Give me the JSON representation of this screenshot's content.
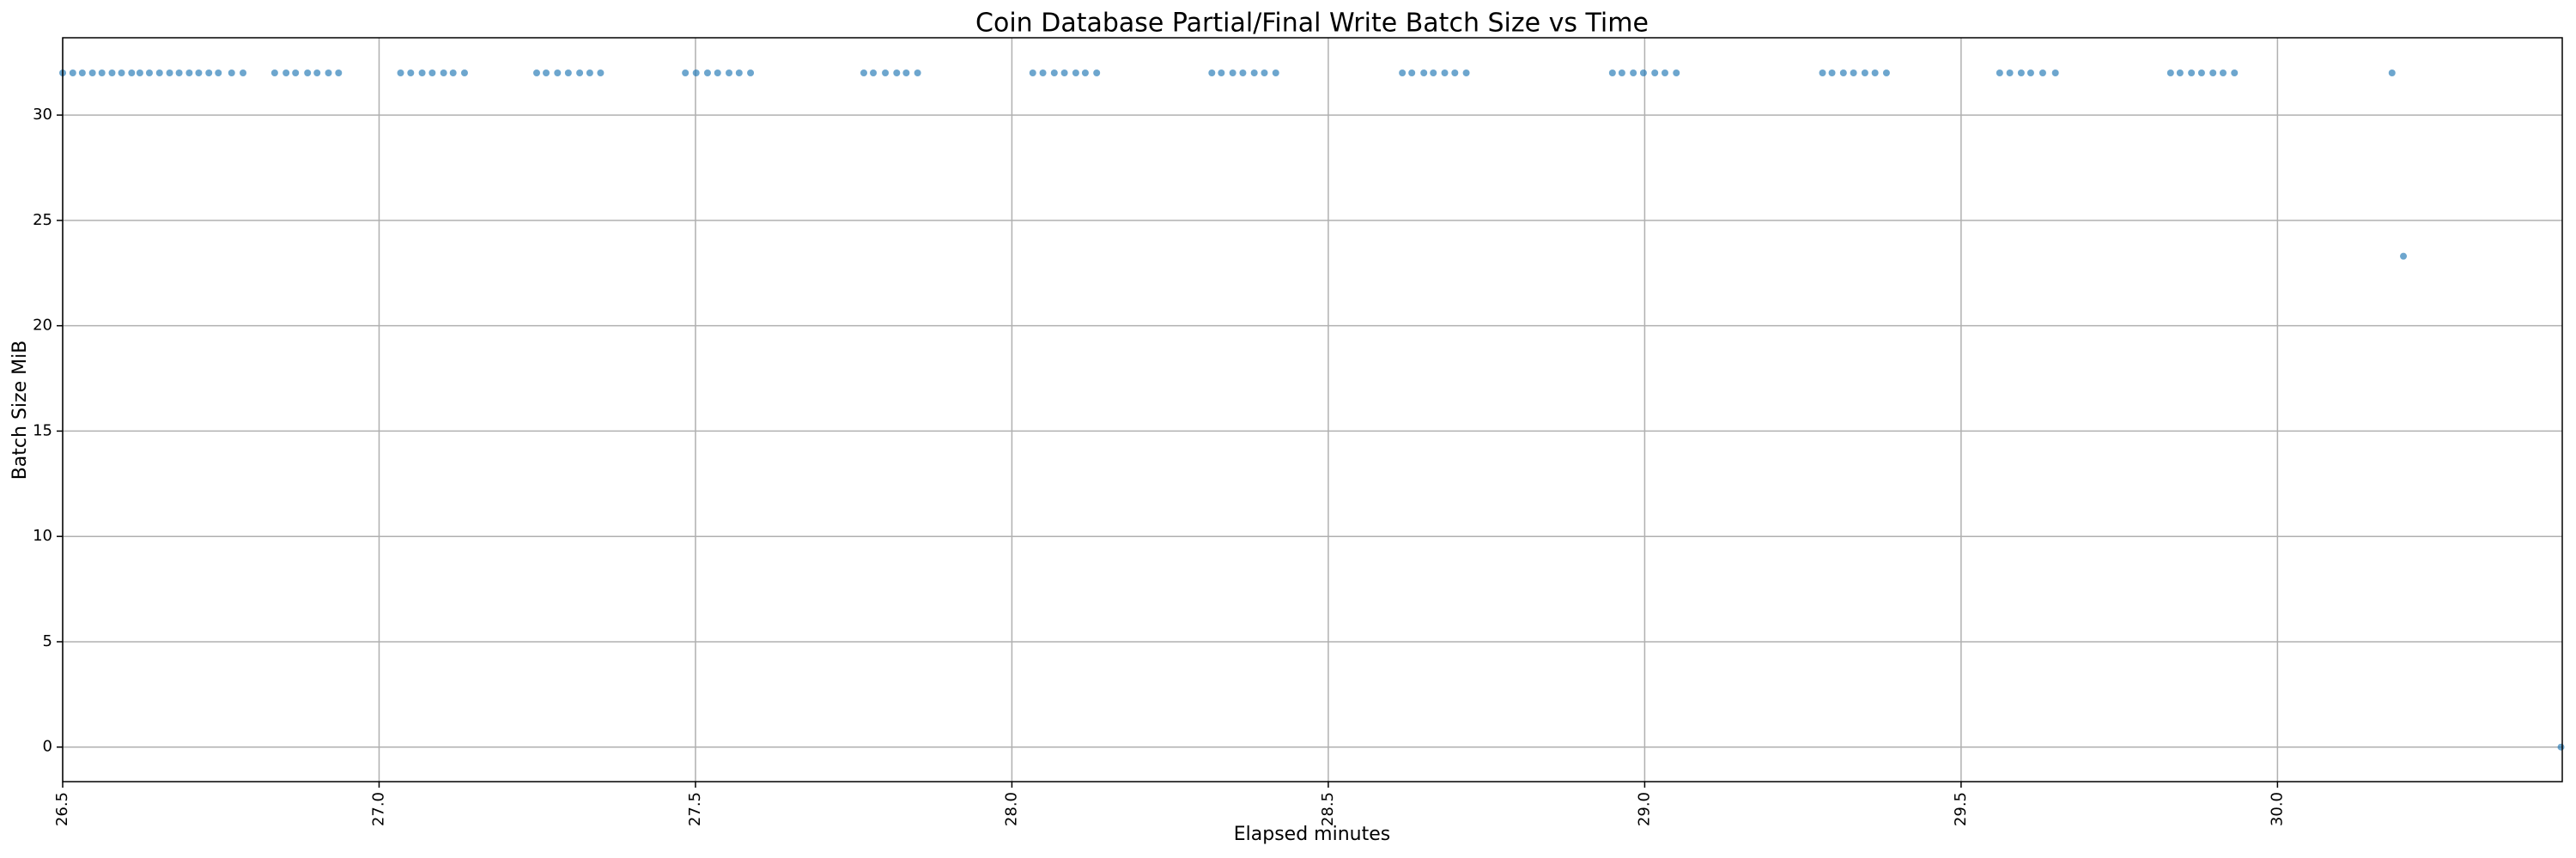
{
  "chart_data": {
    "type": "scatter",
    "title": "Coin Database Partial/Final Write Batch Size vs Time",
    "x_label": "Elapsed minutes",
    "y_label": "Batch Size MiB",
    "series": [
      {
        "color": "#1f77b4",
        "x": [
          26.5,
          26.516,
          26.531,
          26.547,
          26.562,
          26.578,
          26.593,
          26.609,
          26.622,
          26.637,
          26.653,
          26.669,
          26.684,
          26.7,
          26.715,
          26.731,
          26.746,
          26.767,
          26.785,
          26.835,
          26.853,
          26.868,
          26.887,
          26.902,
          26.92,
          26.936,
          27.034,
          27.05,
          27.068,
          27.084,
          27.102,
          27.117,
          27.135,
          27.249,
          27.264,
          27.282,
          27.299,
          27.317,
          27.333,
          27.35,
          27.484,
          27.501,
          27.519,
          27.535,
          27.553,
          27.569,
          27.587,
          27.766,
          27.781,
          27.8,
          27.818,
          27.833,
          27.851,
          28.033,
          28.049,
          28.067,
          28.083,
          28.101,
          28.116,
          28.134,
          28.316,
          28.331,
          28.349,
          28.365,
          28.383,
          28.399,
          28.417,
          28.617,
          28.632,
          28.651,
          28.666,
          28.684,
          28.7,
          28.718,
          28.949,
          28.964,
          28.982,
          28.998,
          29.016,
          29.032,
          29.05,
          29.281,
          29.296,
          29.314,
          29.33,
          29.348,
          29.364,
          29.382,
          29.561,
          29.577,
          29.595,
          29.61,
          29.629,
          29.649,
          29.831,
          29.846,
          29.864,
          29.88,
          29.898,
          29.914,
          29.932,
          30.181,
          30.199,
          30.448
        ],
        "values": [
          32,
          32,
          32,
          32,
          32,
          32,
          32,
          32,
          32,
          32,
          32,
          32,
          32,
          32,
          32,
          32,
          32,
          32,
          32,
          32,
          32,
          32,
          32,
          32,
          32,
          32,
          32,
          32,
          32,
          32,
          32,
          32,
          32,
          32,
          32,
          32,
          32,
          32,
          32,
          32,
          32,
          32,
          32,
          32,
          32,
          32,
          32,
          32,
          32,
          32,
          32,
          32,
          32,
          32,
          32,
          32,
          32,
          32,
          32,
          32,
          32,
          32,
          32,
          32,
          32,
          32,
          32,
          32,
          32,
          32,
          32,
          32,
          32,
          32,
          32,
          32,
          32,
          32,
          32,
          32,
          32,
          32,
          32,
          32,
          32,
          32,
          32,
          32,
          32,
          32,
          32,
          32,
          32,
          32,
          32,
          32,
          32,
          32,
          32,
          32,
          32,
          32,
          23.3,
          0
        ]
      }
    ],
    "xlim": [
      26.5,
      30.45
    ],
    "ylim": [
      -1.64,
      33.67
    ],
    "xticks": [
      26.5,
      {
        "value": 27,
        "label": "27.0"
      },
      27.5,
      {
        "value": 28,
        "label": "28.0"
      },
      28.5,
      {
        "value": 29,
        "label": "29.0"
      },
      29.5,
      {
        "value": 30,
        "label": "30.0"
      }
    ],
    "yticks": [
      0,
      5,
      10,
      15,
      20,
      25,
      30
    ],
    "grid": true
  }
}
